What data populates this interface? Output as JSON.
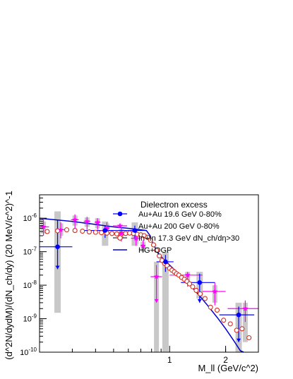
{
  "chart_data": {
    "type": "scatter",
    "title": "",
    "xlabel": "M_ll (GeV/c^2)",
    "ylabel": "(d^2N/dydM)/(dN_ch/dy) (20 MeV/c^2)^-1",
    "xlim": [
      0.2,
      3.0
    ],
    "ylim": [
      1e-10,
      5e-06
    ],
    "yscale": "log",
    "grid": false,
    "legend": {
      "placement": "top-right",
      "header": "Dielectron excess",
      "entries": [
        "Au+Au 19.6 GeV 0-80%",
        "Au+Au 200 GeV 0-80%",
        "In+In 17.3 GeV dN_ch/dη>30",
        "HG+QGP"
      ]
    },
    "x_ticks": [
      {
        "value": 1,
        "label": "1"
      },
      {
        "value": 2,
        "label": "2"
      }
    ],
    "y_ticks": [
      {
        "value": 1e-10,
        "base": "10",
        "exp": "-10"
      },
      {
        "value": 1e-09,
        "base": "10",
        "exp": "-9"
      },
      {
        "value": 1e-08,
        "base": "10",
        "exp": "-8"
      },
      {
        "value": 1e-07,
        "base": "10",
        "exp": "-7"
      },
      {
        "value": 1e-06,
        "base": "10",
        "exp": "-6"
      }
    ],
    "colors": {
      "auau19": "#0000ff",
      "auau200": "#ff00ff",
      "inin": "#d62d20",
      "model": "#0000cc",
      "syst": "#c8c8c8"
    },
    "series": [
      {
        "name": "Au+Au 19.6 GeV 0-80%",
        "marker": "circle",
        "points": [
          {
            "x": 0.25,
            "y": 1.4e-07,
            "xerr": 0.05,
            "ylo": 3e-08,
            "yhi": 9e-07,
            "slo": 1.5e-09,
            "shi": 1.6e-06
          },
          {
            "x": 0.45,
            "y": 4.3e-07,
            "xerr": 0.1,
            "ylo": 2.6e-07,
            "yhi": 6.2e-07,
            "slo": 1.5e-07,
            "shi": 8e-07
          },
          {
            "x": 0.65,
            "y": 4.3e-07,
            "xerr": 0.1,
            "ylo": 2.4e-07,
            "yhi": 6e-07,
            "slo": 1.5e-07,
            "shi": 7.5e-07
          },
          {
            "x": 0.95,
            "y": 5e-08,
            "xerr": 0.1,
            "ylo": 2.5e-08,
            "yhi": 8e-08,
            "slo": 1e-10,
            "shi": 1e-07
          },
          {
            "x": 1.45,
            "y": 1.2e-08,
            "xerr": 0.3,
            "ylo": 3e-09,
            "yhi": 2.2e-08,
            "slo": 4e-09,
            "shi": 2.5e-08
          },
          {
            "x": 2.35,
            "y": 1.3e-09,
            "xerr": 0.5,
            "ylo": 2e-10,
            "yhi": 2.3e-09,
            "slo": 1e-10,
            "shi": 3e-09
          }
        ]
      },
      {
        "name": "Au+Au 200 GeV 0-80%",
        "marker": "star",
        "points": [
          {
            "x": 0.21,
            "y": 5.5e-07,
            "xerr": 0.015,
            "ylo": 3e-07,
            "yhi": 1e-06,
            "slo": 3.5e-07,
            "shi": 8e-07
          },
          {
            "x": 0.26,
            "y": 4.5e-07,
            "xerr": 0.015,
            "ylo": 2.5e-07,
            "yhi": 7.5e-07,
            "slo": 3e-07,
            "shi": 7e-07
          },
          {
            "x": 0.31,
            "y": 9e-07,
            "xerr": 0.015,
            "ylo": 5e-07,
            "yhi": 1.3e-06,
            "slo": 6e-07,
            "shi": 1.2e-06
          },
          {
            "x": 0.36,
            "y": 8e-07,
            "xerr": 0.015,
            "ylo": 4.5e-07,
            "yhi": 1.1e-06,
            "slo": 5.5e-07,
            "shi": 1.05e-06
          },
          {
            "x": 0.41,
            "y": 7.5e-07,
            "xerr": 0.015,
            "ylo": 4.5e-07,
            "yhi": 1e-06,
            "slo": 5e-07,
            "shi": 1e-06
          },
          {
            "x": 0.46,
            "y": 5e-07,
            "xerr": 0.015,
            "ylo": 3e-07,
            "yhi": 7.5e-07,
            "slo": 3.5e-07,
            "shi": 7e-07
          },
          {
            "x": 0.55,
            "y": 3.5e-07,
            "xerr": 0.03,
            "ylo": 2e-07,
            "yhi": 5e-07,
            "slo": 2.5e-07,
            "shi": 4.8e-07
          },
          {
            "x": 0.66,
            "y": 2.5e-07,
            "xerr": 0.04,
            "ylo": 1.5e-07,
            "yhi": 3.5e-07,
            "slo": 1.7e-07,
            "shi": 3.4e-07
          },
          {
            "x": 0.72,
            "y": 1.5e-07,
            "xerr": 0.02,
            "ylo": 1e-07,
            "yhi": 2.2e-07,
            "slo": 1e-07,
            "shi": 2e-07
          },
          {
            "x": 0.85,
            "y": 1.8e-08,
            "xerr": 0.06,
            "ylo": 3e-09,
            "yhi": 4e-08,
            "slo": 1e-10,
            "shi": 5e-08
          },
          {
            "x": 1.25,
            "y": 2e-08,
            "xerr": 0.25,
            "ylo": 9e-09,
            "yhi": 2.5e-08,
            "slo": 1.2e-08,
            "shi": 2.5e-08
          },
          {
            "x": 1.75,
            "y": 6.5e-09,
            "xerr": 0.25,
            "ylo": 2.5e-09,
            "yhi": 1.2e-08,
            "slo": 3e-09,
            "shi": 1e-08
          },
          {
            "x": 2.55,
            "y": 2e-09,
            "xerr": 0.5,
            "ylo": 8e-10,
            "yhi": 3.5e-09,
            "slo": 2e-10,
            "shi": 3e-09
          }
        ]
      },
      {
        "name": "In+In 17.3 GeV dN_ch/dη>30",
        "marker": "open-circle",
        "points": [
          {
            "x": 0.22,
            "y": 4e-07
          },
          {
            "x": 0.25,
            "y": 4.2e-07
          },
          {
            "x": 0.28,
            "y": 4.5e-07
          },
          {
            "x": 0.31,
            "y": 4.3e-07
          },
          {
            "x": 0.34,
            "y": 4.1e-07
          },
          {
            "x": 0.37,
            "y": 3.9e-07
          },
          {
            "x": 0.4,
            "y": 3.8e-07
          },
          {
            "x": 0.43,
            "y": 3.7e-07
          },
          {
            "x": 0.46,
            "y": 3.6e-07
          },
          {
            "x": 0.49,
            "y": 3.5e-07
          },
          {
            "x": 0.52,
            "y": 3.4e-07
          },
          {
            "x": 0.55,
            "y": 3.4e-07
          },
          {
            "x": 0.58,
            "y": 3.5e-07
          },
          {
            "x": 0.61,
            "y": 3.6e-07
          },
          {
            "x": 0.64,
            "y": 3.5e-07
          },
          {
            "x": 0.67,
            "y": 3.3e-07
          },
          {
            "x": 0.7,
            "y": 3.2e-07
          },
          {
            "x": 0.73,
            "y": 3e-07
          },
          {
            "x": 0.76,
            "y": 2.7e-07
          },
          {
            "x": 0.79,
            "y": 2.2e-07
          },
          {
            "x": 0.82,
            "y": 1.6e-07
          },
          {
            "x": 0.85,
            "y": 1.1e-07
          },
          {
            "x": 0.88,
            "y": 7.5e-08
          },
          {
            "x": 0.91,
            "y": 5.5e-08
          },
          {
            "x": 0.94,
            "y": 4.5e-08
          },
          {
            "x": 0.97,
            "y": 3.8e-08
          },
          {
            "x": 1.0,
            "y": 3.2e-08
          },
          {
            "x": 1.03,
            "y": 2.8e-08
          },
          {
            "x": 1.06,
            "y": 2.5e-08
          },
          {
            "x": 1.09,
            "y": 2.2e-08
          },
          {
            "x": 1.12,
            "y": 2e-08
          },
          {
            "x": 1.16,
            "y": 1.7e-08
          },
          {
            "x": 1.2,
            "y": 1.5e-08
          },
          {
            "x": 1.24,
            "y": 1.3e-08
          },
          {
            "x": 1.28,
            "y": 1.1e-08
          },
          {
            "x": 1.33,
            "y": 9e-09
          },
          {
            "x": 1.39,
            "y": 7e-09
          },
          {
            "x": 1.46,
            "y": 5.5e-09
          },
          {
            "x": 1.55,
            "y": 4e-09
          },
          {
            "x": 1.66,
            "y": 2.2e-09
          },
          {
            "x": 1.8,
            "y": 1.8e-09
          },
          {
            "x": 1.95,
            "y": 9e-10
          },
          {
            "x": 2.12,
            "y": 7e-10
          },
          {
            "x": 2.29,
            "y": 4.5e-10
          },
          {
            "x": 2.45,
            "y": 5e-10
          },
          {
            "x": 2.67,
            "y": 2.7e-10
          }
        ]
      },
      {
        "name": "HG+QGP",
        "marker": "line",
        "points": [
          {
            "x": 0.2,
            "y": 1e-06
          },
          {
            "x": 0.3,
            "y": 8e-07
          },
          {
            "x": 0.4,
            "y": 6.5e-07
          },
          {
            "x": 0.5,
            "y": 5.5e-07
          },
          {
            "x": 0.6,
            "y": 5e-07
          },
          {
            "x": 0.7,
            "y": 4.5e-07
          },
          {
            "x": 0.75,
            "y": 4.3e-07
          },
          {
            "x": 0.78,
            "y": 3.2e-07
          },
          {
            "x": 0.82,
            "y": 1.6e-07
          },
          {
            "x": 0.88,
            "y": 8e-08
          },
          {
            "x": 1.0,
            "y": 4e-08
          },
          {
            "x": 1.2,
            "y": 1.5e-08
          },
          {
            "x": 1.4,
            "y": 6e-09
          },
          {
            "x": 1.6,
            "y": 2.5e-09
          },
          {
            "x": 1.8,
            "y": 1.1e-09
          },
          {
            "x": 2.0,
            "y": 5e-10
          },
          {
            "x": 2.2,
            "y": 2.3e-10
          },
          {
            "x": 2.4,
            "y": 1.1e-10
          },
          {
            "x": 2.5,
            "y": 8e-11
          }
        ]
      }
    ]
  }
}
